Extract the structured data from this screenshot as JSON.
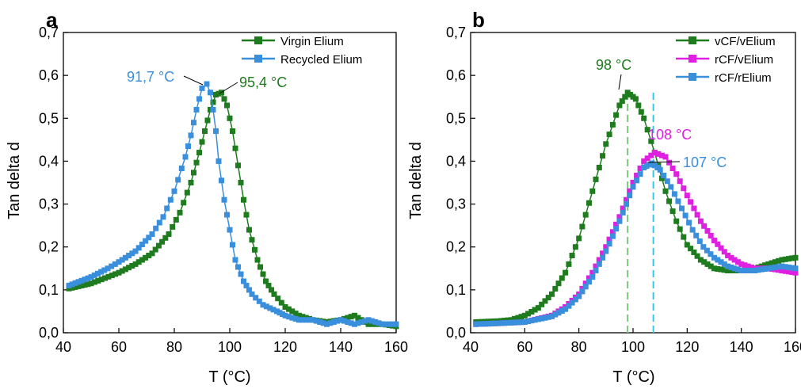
{
  "panels": [
    {
      "label": "a",
      "xlabel": "T (°C)",
      "ylabel": "Tan delta d",
      "xlim": [
        40,
        160
      ],
      "ylim": [
        0,
        0.7
      ],
      "xticks": [
        "40",
        "60",
        "80",
        "100",
        "120",
        "140",
        "160"
      ],
      "yticks": [
        "0,0",
        "0,1",
        "0,2",
        "0,3",
        "0,4",
        "0,5",
        "0,6",
        "0,7"
      ],
      "legend": [
        "Virgin Elium",
        "Recycled Elium"
      ],
      "annotations": [
        "91,7 °C",
        "95,4 °C"
      ]
    },
    {
      "label": "b",
      "xlabel": "T (°C)",
      "ylabel": "Tan delta d",
      "xlim": [
        40,
        160
      ],
      "ylim": [
        0,
        0.7
      ],
      "xticks": [
        "40",
        "60",
        "80",
        "100",
        "120",
        "140",
        "160"
      ],
      "yticks": [
        "0,0",
        "0,1",
        "0,2",
        "0,3",
        "0,4",
        "0,5",
        "0,6",
        "0,7"
      ],
      "legend": [
        "vCF/vElium",
        "rCF/vElium",
        "rCF/rElium"
      ],
      "annotations": [
        "98 °C",
        "108 °C",
        "107 °C"
      ]
    }
  ],
  "chart_data": [
    {
      "type": "line",
      "title": "a",
      "xlabel": "T (°C)",
      "ylabel": "Tan delta d",
      "xlim": [
        40,
        160
      ],
      "ylim": [
        0,
        0.7
      ],
      "grid": false,
      "legend_position": "top-right",
      "annotations": [
        {
          "text": "91,7 °C",
          "x": 91.7,
          "y": 0.58,
          "color": "#3a8fdd"
        },
        {
          "text": "95,4 °C",
          "x": 95.4,
          "y": 0.56,
          "color": "#1e7b1e"
        }
      ],
      "series": [
        {
          "name": "Virgin Elium",
          "color": "#1e7b1e",
          "x": [
            42,
            50,
            60,
            66,
            72,
            78,
            82,
            86,
            89,
            91,
            93,
            95,
            97,
            99,
            101,
            103,
            105,
            107,
            110,
            113,
            116,
            120,
            125,
            130,
            135,
            140,
            145,
            150,
            155,
            160
          ],
          "y": [
            0.103,
            0.115,
            0.14,
            0.16,
            0.185,
            0.23,
            0.28,
            0.35,
            0.42,
            0.47,
            0.52,
            0.555,
            0.56,
            0.53,
            0.47,
            0.39,
            0.31,
            0.24,
            0.17,
            0.12,
            0.09,
            0.06,
            0.04,
            0.03,
            0.025,
            0.03,
            0.04,
            0.02,
            0.02,
            0.015
          ]
        },
        {
          "name": "Recycled Elium",
          "color": "#3a8fdd",
          "x": [
            42,
            50,
            56,
            60,
            66,
            72,
            76,
            80,
            84,
            86,
            88,
            90,
            91.7,
            93,
            94,
            95,
            96,
            98,
            100,
            102,
            105,
            108,
            112,
            117,
            120,
            125,
            130,
            135,
            140,
            145,
            150,
            155,
            160
          ],
          "y": [
            0.11,
            0.13,
            0.15,
            0.165,
            0.19,
            0.23,
            0.27,
            0.33,
            0.41,
            0.46,
            0.52,
            0.57,
            0.58,
            0.56,
            0.52,
            0.47,
            0.4,
            0.31,
            0.24,
            0.17,
            0.12,
            0.09,
            0.065,
            0.05,
            0.04,
            0.03,
            0.03,
            0.02,
            0.03,
            0.02,
            0.03,
            0.02,
            0.02
          ]
        }
      ]
    },
    {
      "type": "line",
      "title": "b",
      "xlabel": "T (°C)",
      "ylabel": "Tan delta d",
      "xlim": [
        40,
        160
      ],
      "ylim": [
        0,
        0.7
      ],
      "grid": false,
      "legend_position": "top-right",
      "reference_lines": [
        {
          "x": 98,
          "color": "#7cc67c"
        },
        {
          "x": 107.5,
          "color": "#38c6e8"
        }
      ],
      "annotations": [
        {
          "text": "98 °C",
          "x": 98,
          "y": 0.56,
          "color": "#1e7b1e"
        },
        {
          "text": "108 °C",
          "x": 108,
          "y": 0.42,
          "color": "#e020e0"
        },
        {
          "text": "107 °C",
          "x": 107,
          "y": 0.395,
          "color": "#3a8fdd"
        }
      ],
      "series": [
        {
          "name": "vCF/vElium",
          "color": "#1e7b1e",
          "x": [
            42,
            50,
            55,
            60,
            65,
            70,
            75,
            80,
            85,
            90,
            95,
            98,
            101,
            104,
            108,
            112,
            116,
            120,
            125,
            130,
            135,
            140,
            145,
            150,
            155,
            160
          ],
          "y": [
            0.025,
            0.027,
            0.03,
            0.04,
            0.058,
            0.09,
            0.14,
            0.22,
            0.33,
            0.44,
            0.53,
            0.56,
            0.545,
            0.5,
            0.42,
            0.33,
            0.26,
            0.205,
            0.17,
            0.15,
            0.145,
            0.145,
            0.15,
            0.16,
            0.17,
            0.175
          ]
        },
        {
          "name": "rCF/vElium",
          "color": "#e020e0",
          "x": [
            42,
            50,
            60,
            70,
            75,
            80,
            85,
            90,
            95,
            100,
            104,
            108,
            112,
            116,
            120,
            125,
            130,
            135,
            140,
            145,
            150,
            155,
            160
          ],
          "y": [
            0.02,
            0.022,
            0.025,
            0.04,
            0.06,
            0.09,
            0.14,
            0.2,
            0.27,
            0.35,
            0.4,
            0.42,
            0.41,
            0.37,
            0.32,
            0.26,
            0.215,
            0.18,
            0.16,
            0.15,
            0.15,
            0.145,
            0.14
          ]
        },
        {
          "name": "rCF/rElium",
          "color": "#3a8fdd",
          "x": [
            42,
            50,
            60,
            70,
            75,
            80,
            85,
            90,
            95,
            100,
            104,
            107,
            110,
            114,
            118,
            122,
            126,
            130,
            135,
            140,
            145,
            150,
            155,
            160
          ],
          "y": [
            0.02,
            0.022,
            0.025,
            0.038,
            0.055,
            0.085,
            0.13,
            0.19,
            0.26,
            0.34,
            0.385,
            0.395,
            0.38,
            0.34,
            0.29,
            0.24,
            0.2,
            0.175,
            0.155,
            0.145,
            0.145,
            0.15,
            0.155,
            0.15
          ]
        }
      ]
    }
  ]
}
